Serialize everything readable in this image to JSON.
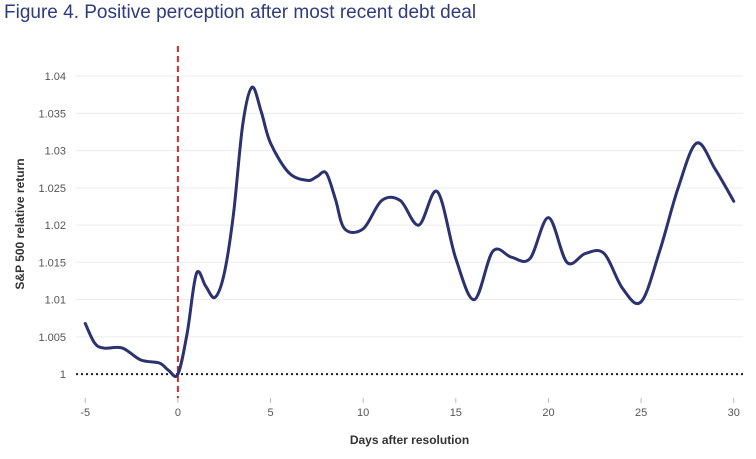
{
  "figure": {
    "title": "Figure 4. Positive perception after most recent debt deal"
  },
  "colors": {
    "title": "#2e3b7d",
    "series": "#2b3270",
    "event_line": "#d42a2a",
    "baseline": "#222222",
    "grid": "#ececec"
  },
  "chart_data": {
    "type": "line",
    "title": "Figure 4. Positive perception after most recent debt deal",
    "xlabel": "Days after resolution",
    "ylabel": "S&P 500 relative return",
    "xlim": [
      -5.5,
      30.5
    ],
    "ylim": [
      0.9968,
      1.0435
    ],
    "x_ticks": [
      -5,
      0,
      5,
      10,
      15,
      20,
      25,
      30
    ],
    "x_tick_labels": [
      "-5",
      "0",
      "5",
      "10",
      "15",
      "20",
      "25",
      "30"
    ],
    "y_ticks": [
      1,
      1.005,
      1.01,
      1.015,
      1.02,
      1.025,
      1.03,
      1.035,
      1.04
    ],
    "y_tick_labels": [
      "1",
      "1.005",
      "1.01",
      "1.015",
      "1.02",
      "1.025",
      "1.03",
      "1.035",
      "1.04"
    ],
    "grid": "horizontal",
    "reference_lines": [
      {
        "axis": "x",
        "value": 0,
        "style": "dashed",
        "color": "#d42a2a"
      },
      {
        "axis": "y",
        "value": 1,
        "style": "dotted",
        "color": "#222222"
      }
    ],
    "series": [
      {
        "x": [
          -5,
          -4.5,
          -4,
          -3,
          -2,
          -1,
          -0.5,
          0,
          0.5,
          1,
          1.5,
          2,
          2.5,
          3,
          3.5,
          4,
          4.5,
          5,
          6,
          7,
          7.5,
          8,
          8.5,
          9,
          10,
          11,
          12,
          13,
          14,
          15,
          16,
          17,
          18,
          19,
          20,
          21,
          22,
          23,
          24,
          25,
          26,
          27,
          28,
          29,
          30
        ],
        "y": [
          1.0068,
          1.0042,
          1.0035,
          1.0035,
          1.0019,
          1.0015,
          1.0005,
          1.0,
          1.0055,
          1.0135,
          1.0118,
          1.0103,
          1.0135,
          1.0215,
          1.0335,
          1.0385,
          1.0352,
          1.031,
          1.027,
          1.026,
          1.0265,
          1.027,
          1.0235,
          1.0195,
          1.0195,
          1.0233,
          1.0233,
          1.02,
          1.0245,
          1.0155,
          1.01,
          1.0165,
          1.0157,
          1.0155,
          1.021,
          1.015,
          1.0162,
          1.0162,
          1.0115,
          1.0097,
          1.0165,
          1.025,
          1.031,
          1.0275,
          1.0232
        ]
      }
    ]
  }
}
